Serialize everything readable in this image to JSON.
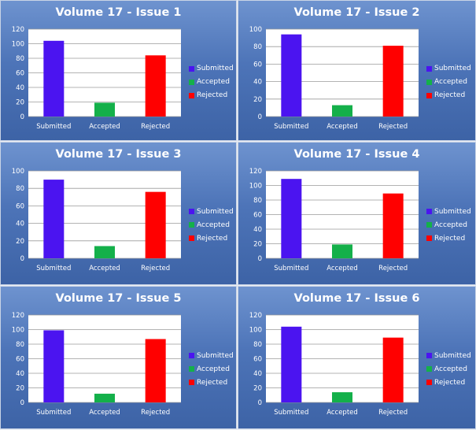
{
  "colors": {
    "Submitted": "#4b14f0",
    "Accepted": "#14b04a",
    "Rejected": "#ff0000"
  },
  "chart_data": [
    {
      "type": "bar",
      "title": "Volume 17 - Issue 1",
      "categories": [
        "Submitted",
        "Accepted",
        "Rejected"
      ],
      "values": [
        104,
        19,
        84
      ],
      "ylim": [
        0,
        120
      ],
      "yticks": [
        0,
        20,
        40,
        60,
        80,
        100,
        120
      ],
      "grid": true,
      "legend": [
        "Submitted",
        "Accepted",
        "Rejected"
      ],
      "legend_position": "right"
    },
    {
      "type": "bar",
      "title": "Volume 17 - Issue 2",
      "categories": [
        "Submitted",
        "Accepted",
        "Rejected"
      ],
      "values": [
        94,
        13,
        81
      ],
      "ylim": [
        0,
        100
      ],
      "yticks": [
        0,
        20,
        40,
        60,
        80,
        100
      ],
      "grid": true,
      "legend": [
        "Submitted",
        "Accepted",
        "Rejected"
      ],
      "legend_position": "right"
    },
    {
      "type": "bar",
      "title": "Volume 17 - Issue 3",
      "categories": [
        "Submitted",
        "Accepted",
        "Rejected"
      ],
      "values": [
        90,
        14,
        76
      ],
      "ylim": [
        0,
        100
      ],
      "yticks": [
        0,
        20,
        40,
        60,
        80,
        100
      ],
      "grid": true,
      "legend": [
        "Submitted",
        "Accepted",
        "Rejected"
      ],
      "legend_position": "right"
    },
    {
      "type": "bar",
      "title": "Volume 17 - Issue 4",
      "categories": [
        "Submitted",
        "Accepted",
        "Rejected"
      ],
      "values": [
        109,
        19,
        89
      ],
      "ylim": [
        0,
        120
      ],
      "yticks": [
        0,
        20,
        40,
        60,
        80,
        100,
        120
      ],
      "grid": true,
      "legend": [
        "Submitted",
        "Accepted",
        "Rejected"
      ],
      "legend_position": "right"
    },
    {
      "type": "bar",
      "title": "Volume 17 - Issue 5",
      "categories": [
        "Submitted",
        "Accepted",
        "Rejected"
      ],
      "values": [
        99,
        12,
        87
      ],
      "ylim": [
        0,
        120
      ],
      "yticks": [
        0,
        20,
        40,
        60,
        80,
        100,
        120
      ],
      "grid": true,
      "legend": [
        "Submitted",
        "Accepted",
        "Rejected"
      ],
      "legend_position": "right"
    },
    {
      "type": "bar",
      "title": "Volume 17 - Issue 6",
      "categories": [
        "Submitted",
        "Accepted",
        "Rejected"
      ],
      "values": [
        104,
        14,
        89
      ],
      "ylim": [
        0,
        120
      ],
      "yticks": [
        0,
        20,
        40,
        60,
        80,
        100,
        120
      ],
      "grid": true,
      "legend": [
        "Submitted",
        "Accepted",
        "Rejected"
      ],
      "legend_position": "right"
    }
  ]
}
